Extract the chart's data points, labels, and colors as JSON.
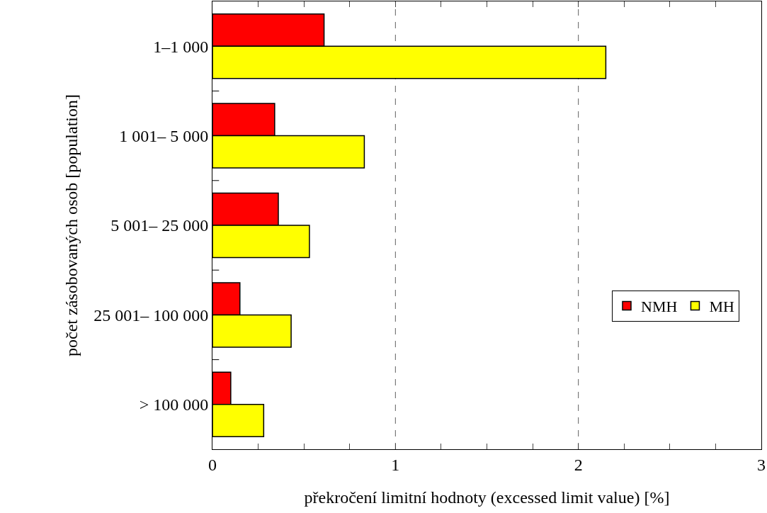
{
  "chart_data": {
    "type": "bar",
    "orientation": "horizontal",
    "xlabel": "překročení limitní hodnoty (excessed limit value) [%]",
    "ylabel": "počet zásobovaných osob [population]",
    "categories": [
      "1–1 000",
      "1 001– 5 000",
      "5 001– 25 000",
      "25 001– 100 000",
      "> 100 000"
    ],
    "series": [
      {
        "name": "NMH",
        "color": "#ff0000",
        "values": [
          0.61,
          0.34,
          0.36,
          0.15,
          0.1
        ]
      },
      {
        "name": "MH",
        "color": "#ffff00",
        "values": [
          2.15,
          0.83,
          0.53,
          0.43,
          0.28
        ]
      }
    ],
    "xlim": [
      0,
      3
    ],
    "xticks": [
      0,
      {
        "value": 0.25,
        "label": null
      },
      {
        "value": 0.5,
        "label": null
      },
      {
        "value": 0.75,
        "label": null
      },
      1,
      {
        "value": 1.25,
        "label": null
      },
      {
        "value": 1.5,
        "label": null
      },
      {
        "value": 1.75,
        "label": null
      },
      2,
      {
        "value": 2.25,
        "label": null
      },
      {
        "value": 2.5,
        "label": null
      },
      {
        "value": 2.75,
        "label": null
      },
      3
    ],
    "ref_lines": [
      {
        "axis": "x",
        "value": 1,
        "color": "#606060",
        "line_style": "dashed"
      },
      {
        "axis": "x",
        "value": 2,
        "color": "#606060",
        "line_style": "dashed"
      }
    ],
    "legend": "right",
    "grid": false
  }
}
